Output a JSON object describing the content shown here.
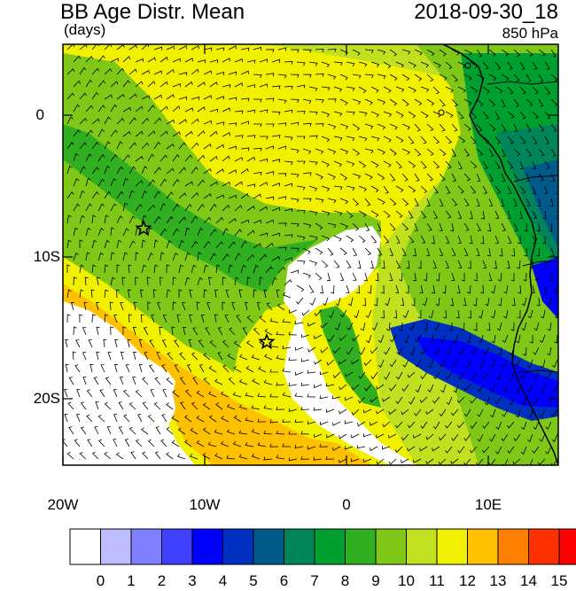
{
  "header": {
    "title": "BB Age Distr. Mean",
    "subtitle": "(days)",
    "datetime": "2018-09-30_18",
    "level": "850 hPa"
  },
  "axes": {
    "y_labels": [
      "0",
      "10S",
      "20S"
    ],
    "x_labels": [
      "20W",
      "10W",
      "0",
      "10E"
    ]
  },
  "colorbar": {
    "labels": [
      "0",
      "1",
      "2",
      "3",
      "4",
      "5",
      "6",
      "7",
      "8",
      "9",
      "10",
      "11",
      "12",
      "13",
      "14",
      "15"
    ],
    "colors": [
      "#ffffff",
      "#bdbdff",
      "#7f7fff",
      "#4040ff",
      "#0000ff",
      "#0030c0",
      "#005a8a",
      "#00845a",
      "#00a030",
      "#30b020",
      "#80c818",
      "#c0e020",
      "#f0f000",
      "#ffc000",
      "#ff8000",
      "#ff3000",
      "#ff0000"
    ]
  },
  "map_colors": {
    "yellow": "#f0f000",
    "light_green": "#c0e020",
    "green": "#80c818",
    "mid_green": "#30b020",
    "dark_green": "#00a030",
    "teal": "#00845a",
    "blue_teal": "#005a8a",
    "navy": "#0030c0",
    "blue": "#0000ff",
    "orange": "#ffc000",
    "white": "#ffffff"
  },
  "markers": [
    "star",
    "star"
  ]
}
